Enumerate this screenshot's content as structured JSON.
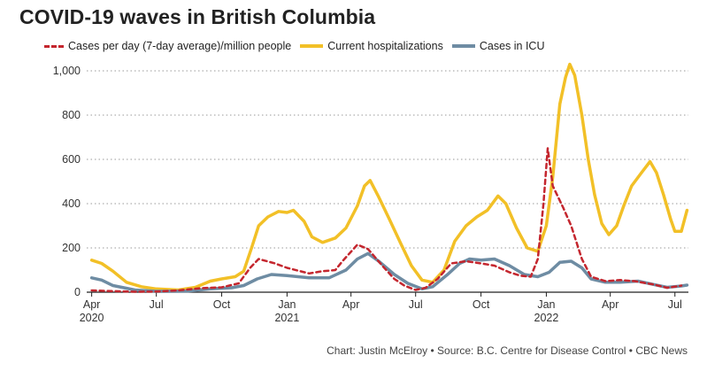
{
  "title": "COVID-19 waves in British Columbia",
  "credit": "Chart: Justin McElroy • Source: B.C. Centre for Disease Control • CBC News",
  "chart_data": {
    "type": "line",
    "title": "COVID-19 waves in British Columbia",
    "xlabel": "",
    "ylabel": "",
    "ylim": [
      0,
      1000
    ],
    "xlim": [
      "2020-03-25",
      "2022-07-20"
    ],
    "yticks": [
      0,
      200,
      400,
      600,
      800,
      1000
    ],
    "ytick_labels": [
      "0",
      "200",
      "400",
      "600",
      "800",
      "1,000"
    ],
    "grid": "horizontal dotted",
    "legend_position": "top",
    "xticks": [
      {
        "date": "2020-04-01",
        "label": "Apr",
        "sub": "2020"
      },
      {
        "date": "2020-07-01",
        "label": "Jul",
        "sub": ""
      },
      {
        "date": "2020-10-01",
        "label": "Oct",
        "sub": ""
      },
      {
        "date": "2021-01-01",
        "label": "Jan",
        "sub": "2021"
      },
      {
        "date": "2021-04-01",
        "label": "Apr",
        "sub": ""
      },
      {
        "date": "2021-07-01",
        "label": "Jul",
        "sub": ""
      },
      {
        "date": "2021-10-01",
        "label": "Oct",
        "sub": ""
      },
      {
        "date": "2022-01-01",
        "label": "Jan",
        "sub": "2022"
      },
      {
        "date": "2022-04-01",
        "label": "Apr",
        "sub": ""
      },
      {
        "date": "2022-07-01",
        "label": "Jul",
        "sub": ""
      }
    ],
    "series": [
      {
        "name": "Cases per day (7-day average)/million people",
        "color": "#c4262e",
        "style": "dashed",
        "points": [
          [
            "2020-04-01",
            8
          ],
          [
            "2020-05-01",
            5
          ],
          [
            "2020-06-01",
            2
          ],
          [
            "2020-07-01",
            3
          ],
          [
            "2020-08-01",
            8
          ],
          [
            "2020-09-01",
            18
          ],
          [
            "2020-10-01",
            22
          ],
          [
            "2020-10-25",
            40
          ],
          [
            "2020-11-10",
            110
          ],
          [
            "2020-11-22",
            150
          ],
          [
            "2020-12-15",
            130
          ],
          [
            "2021-01-01",
            110
          ],
          [
            "2021-02-01",
            85
          ],
          [
            "2021-02-20",
            95
          ],
          [
            "2021-03-10",
            100
          ],
          [
            "2021-03-20",
            140
          ],
          [
            "2021-04-03",
            190
          ],
          [
            "2021-04-10",
            215
          ],
          [
            "2021-04-25",
            195
          ],
          [
            "2021-05-15",
            120
          ],
          [
            "2021-06-01",
            60
          ],
          [
            "2021-06-15",
            30
          ],
          [
            "2021-07-01",
            10
          ],
          [
            "2021-07-15",
            20
          ],
          [
            "2021-08-01",
            60
          ],
          [
            "2021-08-20",
            130
          ],
          [
            "2021-09-10",
            140
          ],
          [
            "2021-10-01",
            130
          ],
          [
            "2021-10-20",
            120
          ],
          [
            "2021-11-10",
            90
          ],
          [
            "2021-11-25",
            75
          ],
          [
            "2021-12-10",
            70
          ],
          [
            "2021-12-20",
            150
          ],
          [
            "2021-12-28",
            400
          ],
          [
            "2022-01-03",
            650
          ],
          [
            "2022-01-10",
            480
          ],
          [
            "2022-01-25",
            380
          ],
          [
            "2022-02-05",
            300
          ],
          [
            "2022-02-20",
            150
          ],
          [
            "2022-03-05",
            70
          ],
          [
            "2022-03-25",
            50
          ],
          [
            "2022-04-15",
            55
          ],
          [
            "2022-05-05",
            50
          ],
          [
            "2022-06-01",
            35
          ],
          [
            "2022-06-20",
            20
          ],
          [
            "2022-07-01",
            25
          ],
          [
            "2022-07-10",
            30
          ]
        ]
      },
      {
        "name": "Current hospitalizations",
        "color": "#f2c027",
        "style": "solid",
        "points": [
          [
            "2020-04-01",
            145
          ],
          [
            "2020-04-15",
            130
          ],
          [
            "2020-05-01",
            95
          ],
          [
            "2020-05-20",
            45
          ],
          [
            "2020-06-10",
            25
          ],
          [
            "2020-07-01",
            15
          ],
          [
            "2020-08-01",
            10
          ],
          [
            "2020-08-25",
            22
          ],
          [
            "2020-09-15",
            50
          ],
          [
            "2020-10-01",
            60
          ],
          [
            "2020-10-20",
            70
          ],
          [
            "2020-11-01",
            95
          ],
          [
            "2020-11-12",
            200
          ],
          [
            "2020-11-22",
            300
          ],
          [
            "2020-12-05",
            340
          ],
          [
            "2020-12-20",
            365
          ],
          [
            "2021-01-01",
            360
          ],
          [
            "2021-01-10",
            370
          ],
          [
            "2021-01-25",
            320
          ],
          [
            "2021-02-05",
            250
          ],
          [
            "2021-02-20",
            225
          ],
          [
            "2021-03-10",
            245
          ],
          [
            "2021-03-25",
            290
          ],
          [
            "2021-04-10",
            390
          ],
          [
            "2021-04-20",
            480
          ],
          [
            "2021-04-28",
            505
          ],
          [
            "2021-05-10",
            430
          ],
          [
            "2021-05-25",
            330
          ],
          [
            "2021-06-10",
            220
          ],
          [
            "2021-06-25",
            120
          ],
          [
            "2021-07-10",
            55
          ],
          [
            "2021-07-25",
            45
          ],
          [
            "2021-08-10",
            100
          ],
          [
            "2021-08-25",
            230
          ],
          [
            "2021-09-10",
            300
          ],
          [
            "2021-09-25",
            340
          ],
          [
            "2021-10-10",
            370
          ],
          [
            "2021-10-25",
            435
          ],
          [
            "2021-11-05",
            400
          ],
          [
            "2021-11-20",
            290
          ],
          [
            "2021-12-05",
            200
          ],
          [
            "2021-12-20",
            185
          ],
          [
            "2022-01-01",
            300
          ],
          [
            "2022-01-10",
            520
          ],
          [
            "2022-01-20",
            850
          ],
          [
            "2022-01-28",
            970
          ],
          [
            "2022-02-03",
            1030
          ],
          [
            "2022-02-10",
            980
          ],
          [
            "2022-02-20",
            800
          ],
          [
            "2022-03-01",
            600
          ],
          [
            "2022-03-10",
            440
          ],
          [
            "2022-03-20",
            310
          ],
          [
            "2022-03-30",
            260
          ],
          [
            "2022-04-10",
            300
          ],
          [
            "2022-04-20",
            390
          ],
          [
            "2022-05-01",
            480
          ],
          [
            "2022-05-15",
            540
          ],
          [
            "2022-05-27",
            590
          ],
          [
            "2022-06-05",
            540
          ],
          [
            "2022-06-15",
            440
          ],
          [
            "2022-06-25",
            330
          ],
          [
            "2022-07-01",
            275
          ],
          [
            "2022-07-10",
            275
          ],
          [
            "2022-07-18",
            370
          ]
        ]
      },
      {
        "name": "Cases in ICU",
        "color": "#6e8ca3",
        "style": "solid",
        "points": [
          [
            "2020-04-01",
            65
          ],
          [
            "2020-04-15",
            55
          ],
          [
            "2020-05-01",
            30
          ],
          [
            "2020-06-01",
            10
          ],
          [
            "2020-07-01",
            4
          ],
          [
            "2020-08-15",
            5
          ],
          [
            "2020-09-15",
            15
          ],
          [
            "2020-10-15",
            20
          ],
          [
            "2020-11-01",
            30
          ],
          [
            "2020-11-20",
            60
          ],
          [
            "2020-12-10",
            80
          ],
          [
            "2021-01-01",
            75
          ],
          [
            "2021-02-01",
            65
          ],
          [
            "2021-03-01",
            65
          ],
          [
            "2021-03-25",
            100
          ],
          [
            "2021-04-10",
            150
          ],
          [
            "2021-04-25",
            175
          ],
          [
            "2021-05-10",
            140
          ],
          [
            "2021-06-01",
            80
          ],
          [
            "2021-06-20",
            40
          ],
          [
            "2021-07-10",
            15
          ],
          [
            "2021-07-25",
            25
          ],
          [
            "2021-08-15",
            80
          ],
          [
            "2021-09-01",
            130
          ],
          [
            "2021-09-15",
            150
          ],
          [
            "2021-10-01",
            145
          ],
          [
            "2021-10-20",
            150
          ],
          [
            "2021-11-10",
            120
          ],
          [
            "2021-12-01",
            80
          ],
          [
            "2021-12-20",
            70
          ],
          [
            "2022-01-05",
            90
          ],
          [
            "2022-01-20",
            135
          ],
          [
            "2022-02-05",
            140
          ],
          [
            "2022-02-20",
            110
          ],
          [
            "2022-03-05",
            60
          ],
          [
            "2022-03-25",
            45
          ],
          [
            "2022-04-15",
            45
          ],
          [
            "2022-05-10",
            50
          ],
          [
            "2022-06-01",
            35
          ],
          [
            "2022-06-20",
            22
          ],
          [
            "2022-07-10",
            28
          ],
          [
            "2022-07-18",
            32
          ]
        ]
      }
    ]
  }
}
